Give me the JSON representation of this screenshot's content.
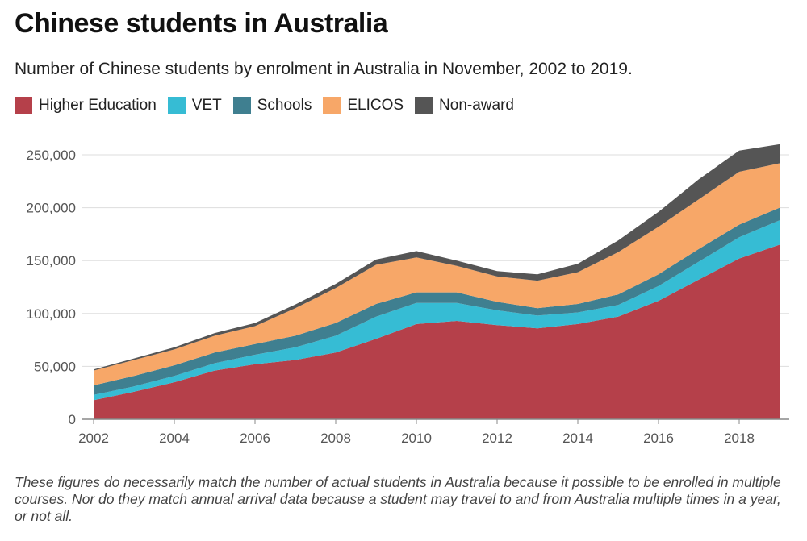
{
  "title": "Chinese students in Australia",
  "subtitle": "Number of Chinese students by enrolment in Australia in November, 2002 to 2019.",
  "footnote": "These figures do necessarily match the number of actual students in Australia because it possible to be enrolled in multiple courses. Nor do they match annual arrival data because a student may travel to and from Australia multiple times in a year, or not all.",
  "chart_data": {
    "type": "area",
    "stacked": true,
    "title": "Chinese students in Australia",
    "subtitle": "Number of Chinese students by enrolment in Australia in November, 2002 to 2019.",
    "x": [
      2002,
      2003,
      2004,
      2005,
      2006,
      2007,
      2008,
      2009,
      2010,
      2011,
      2012,
      2013,
      2014,
      2015,
      2016,
      2017,
      2018,
      2019
    ],
    "x_ticks": [
      2002,
      2004,
      2006,
      2008,
      2010,
      2012,
      2014,
      2016,
      2018
    ],
    "x_tick_labels": [
      "2002",
      "2004",
      "2006",
      "2008",
      "2010",
      "2012",
      "2014",
      "2016",
      "2018"
    ],
    "y_ticks": [
      0,
      50000,
      100000,
      150000,
      200000,
      250000
    ],
    "y_tick_labels": [
      "0",
      "50,000",
      "100,000",
      "150,000",
      "200,000",
      "250,000"
    ],
    "ylim": [
      0,
      250000
    ],
    "legend_position": "top-left",
    "grid": true,
    "series": [
      {
        "name": "Higher Education",
        "color": "#b5404a",
        "values": [
          18000,
          26000,
          35000,
          46000,
          52000,
          56000,
          63000,
          76000,
          90000,
          93000,
          89000,
          86000,
          90000,
          97000,
          112000,
          132000,
          152000,
          165000
        ]
      },
      {
        "name": "VET",
        "color": "#36bcd4",
        "values": [
          5000,
          5000,
          6000,
          7000,
          9000,
          12000,
          16000,
          21000,
          20000,
          17000,
          14000,
          12000,
          11000,
          11000,
          14000,
          17000,
          20000,
          23000
        ]
      },
      {
        "name": "Schools",
        "color": "#3f7f90",
        "values": [
          9000,
          10000,
          10000,
          10000,
          10000,
          11000,
          12000,
          12000,
          10000,
          10000,
          8000,
          7000,
          8000,
          10000,
          11000,
          12000,
          12000,
          12000
        ]
      },
      {
        "name": "ELICOS",
        "color": "#f7a768",
        "values": [
          14000,
          15000,
          15000,
          16000,
          17000,
          26000,
          33000,
          37000,
          33000,
          25000,
          24000,
          26000,
          30000,
          40000,
          45000,
          47000,
          50000,
          42000
        ]
      },
      {
        "name": "Non-award",
        "color": "#555555",
        "values": [
          1000,
          1500,
          2000,
          2500,
          3000,
          3500,
          4000,
          5000,
          6000,
          5000,
          5000,
          6000,
          8000,
          11000,
          14000,
          19000,
          20000,
          18000
        ]
      }
    ]
  }
}
